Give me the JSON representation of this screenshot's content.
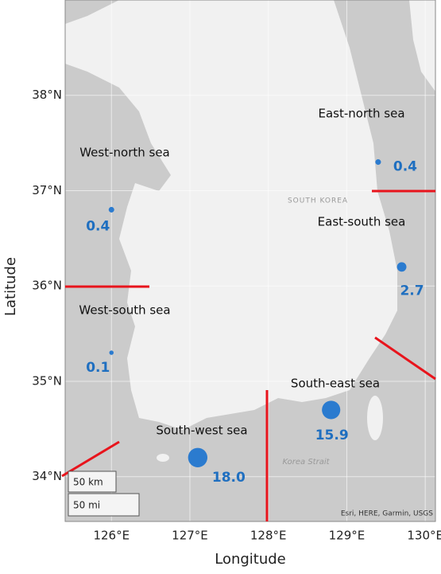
{
  "chart_data": {
    "type": "bubble",
    "xlabel": "Longitude",
    "ylabel": "Latitude",
    "xlim": [
      125.41,
      130.13
    ],
    "ylim": [
      33.53,
      39.0
    ],
    "xticks": [
      {
        "value": 126,
        "label": "126°E"
      },
      {
        "value": 127,
        "label": "127°E"
      },
      {
        "value": 128,
        "label": "128°E"
      },
      {
        "value": 129,
        "label": "129°E"
      },
      {
        "value": 130,
        "label": "130°E"
      }
    ],
    "yticks": [
      {
        "value": 34,
        "label": "34°N"
      },
      {
        "value": 35,
        "label": "35°N"
      },
      {
        "value": 36,
        "label": "36°N"
      },
      {
        "value": 37,
        "label": "37°N"
      },
      {
        "value": 38,
        "label": "38°N"
      }
    ],
    "grid": true,
    "series": [
      {
        "color": "#2b7bcf",
        "x": [
          126.0,
          126.0,
          127.1,
          128.8,
          129.7,
          129.4
        ],
        "values": [
          36.8,
          35.3,
          34.2,
          34.7,
          36.2,
          37.3
        ],
        "sizes": [
          0.4,
          0.1,
          18.0,
          15.9,
          2.7,
          0.4
        ],
        "size_labels": [
          "0.4",
          "0.1",
          "18.0",
          "15.9",
          "2.7",
          "0.4"
        ]
      }
    ],
    "region_labels": [
      "West-north sea",
      "West-south sea",
      "South-west sea",
      "South-east sea",
      "East-south sea",
      "East-north sea"
    ],
    "map_labels": {
      "country": "SOUTH KOREA",
      "strait": "Korea Strait",
      "attribution": "Esri, HERE, Garmin, USGS",
      "scale_km": "50 km",
      "scale_mi": "50 mi"
    }
  }
}
